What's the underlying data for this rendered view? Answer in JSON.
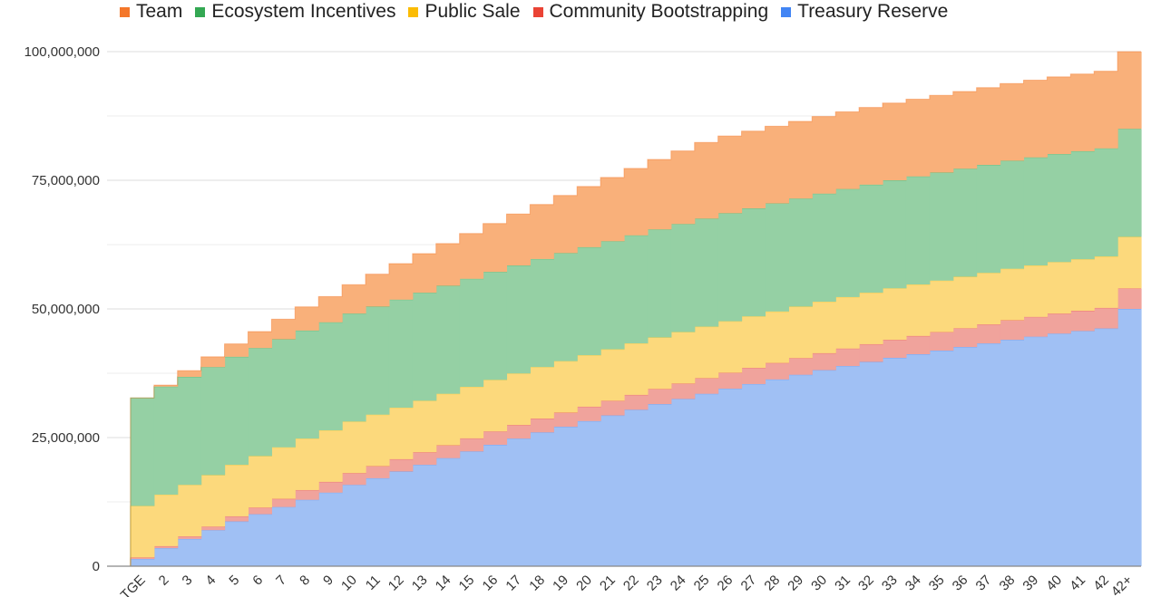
{
  "chart_data": {
    "type": "area",
    "stacked": true,
    "stepped": true,
    "title": "",
    "xlabel": "",
    "ylabel": "",
    "ylim": [
      0,
      100000000
    ],
    "yticks": [
      0,
      25000000,
      50000000,
      75000000,
      100000000
    ],
    "ytick_labels": [
      "0",
      "25,000,000",
      "50,000,000",
      "75,000,000",
      "100,000,000"
    ],
    "grid": true,
    "legend_position": "top",
    "unit_multiplier": 1000000,
    "categories": [
      "",
      "TGE",
      "2",
      "3",
      "4",
      "5",
      "6",
      "7",
      "8",
      "9",
      "10",
      "11",
      "12",
      "13",
      "14",
      "15",
      "16",
      "17",
      "18",
      "19",
      "20",
      "21",
      "22",
      "23",
      "24",
      "25",
      "26",
      "27",
      "28",
      "29",
      "30",
      "31",
      "32",
      "33",
      "34",
      "35",
      "36",
      "37",
      "38",
      "39",
      "40",
      "41",
      "42",
      "42+"
    ],
    "series": [
      {
        "name": "Treasury Reserve",
        "color": "#4285f4",
        "fill": "#a0c0f4",
        "values": [
          0,
          1.4,
          3.5,
          5.3,
          7.0,
          8.7,
          10.1,
          11.5,
          12.9,
          14.3,
          15.8,
          17.1,
          18.4,
          19.7,
          21.0,
          22.3,
          23.6,
          24.8,
          26.0,
          27.1,
          28.2,
          29.3,
          30.4,
          31.5,
          32.5,
          33.5,
          34.5,
          35.4,
          36.3,
          37.2,
          38.1,
          38.9,
          39.7,
          40.5,
          41.2,
          41.9,
          42.6,
          43.3,
          44.0,
          44.6,
          45.2,
          45.7,
          46.2,
          50.0
        ]
      },
      {
        "name": "Community Bootstrapping",
        "color": "#ea4335",
        "fill": "#f0a39c",
        "values": [
          0,
          0.3,
          0.4,
          0.5,
          0.7,
          1.0,
          1.3,
          1.6,
          1.9,
          2.1,
          2.3,
          2.35,
          2.4,
          2.45,
          2.5,
          2.55,
          2.6,
          2.65,
          2.7,
          2.75,
          2.8,
          2.85,
          2.9,
          2.95,
          3.0,
          3.05,
          3.1,
          3.15,
          3.2,
          3.25,
          3.3,
          3.4,
          3.45,
          3.5,
          3.55,
          3.6,
          3.65,
          3.7,
          3.8,
          3.85,
          3.9,
          3.95,
          4.0,
          4.0
        ]
      },
      {
        "name": "Public Sale",
        "color": "#fbbc04",
        "fill": "#fcd97c",
        "values": [
          0,
          10,
          10,
          10,
          10,
          10,
          10,
          10,
          10,
          10,
          10,
          10,
          10,
          10,
          10,
          10,
          10,
          10,
          10,
          10,
          10,
          10,
          10,
          10,
          10,
          10,
          10,
          10,
          10,
          10,
          10,
          10,
          10,
          10,
          10,
          10,
          10,
          10,
          10,
          10,
          10,
          10,
          10,
          10
        ]
      },
      {
        "name": "Ecosystem Incentives",
        "color": "#34a853",
        "fill": "#95d0a4",
        "values": [
          0,
          21,
          21,
          21,
          21,
          21,
          21,
          21,
          21,
          21,
          21,
          21,
          21,
          21,
          21,
          21,
          21,
          21,
          21,
          21,
          21,
          21,
          21,
          21,
          21,
          21,
          21,
          21,
          21,
          21,
          21,
          21,
          21,
          21,
          21,
          21,
          21,
          21,
          21,
          21,
          21,
          21,
          21,
          21
        ]
      },
      {
        "name": "Team",
        "color": "#f4772a",
        "fill": "#f9b07a",
        "values": [
          0,
          0,
          0.3,
          1.2,
          2.0,
          2.5,
          3.2,
          3.9,
          4.6,
          5.0,
          5.6,
          6.3,
          7.0,
          7.6,
          8.2,
          8.8,
          9.4,
          10.0,
          10.6,
          11.2,
          11.8,
          12.4,
          13.0,
          13.6,
          14.2,
          14.8,
          15,
          15,
          15,
          15,
          15,
          15,
          15,
          15,
          15,
          15,
          15,
          15,
          15,
          15,
          15,
          15,
          15,
          15
        ]
      }
    ],
    "legend_order": [
      "Team",
      "Ecosystem Incentives",
      "Public Sale",
      "Community Bootstrapping",
      "Treasury Reserve"
    ]
  }
}
